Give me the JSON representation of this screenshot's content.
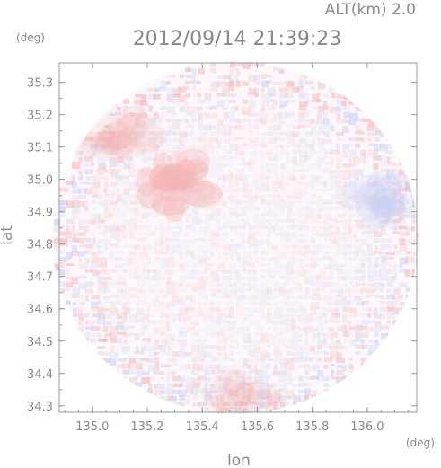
{
  "header": {
    "altitude_label": "ALT(km) 2.0",
    "timestamp": "2012/09/14 21:39:23"
  },
  "colors": {
    "axis": "#9a9a9a",
    "text": "#8a8a8a",
    "positive": "#f4b3b3",
    "negative": "#c8d0f4",
    "background": "#ffffff"
  },
  "chart_data": {
    "type": "heatmap",
    "title": "",
    "xlabel": "lon",
    "ylabel": "lat",
    "x_unit": "(deg)",
    "y_unit": "(deg)",
    "xlim": [
      134.88,
      136.18
    ],
    "ylim": [
      34.28,
      35.36
    ],
    "x_ticks": [
      "135.0",
      "135.2",
      "135.4",
      "135.6",
      "135.8",
      "136.0"
    ],
    "y_ticks": [
      "34.3",
      "34.4",
      "34.5",
      "34.6",
      "34.7",
      "34.8",
      "34.9",
      "35.0",
      "35.1",
      "35.2",
      "35.3"
    ],
    "domain": {
      "shape": "circle",
      "center_lon": 135.52,
      "center_lat": 34.82,
      "radius_lon": 0.665,
      "radius_lat": 0.545
    },
    "features": [
      {
        "name": "warm patch",
        "sign": "positive",
        "lon": 135.3,
        "lat": 34.99,
        "intensity": 0.55
      },
      {
        "name": "north-west rim",
        "sign": "positive",
        "lon": 135.08,
        "lat": 35.12,
        "intensity": 0.25
      },
      {
        "name": "east rim",
        "sign": "negative",
        "lon": 136.06,
        "lat": 34.92,
        "intensity": 0.3
      },
      {
        "name": "south rim",
        "sign": "positive",
        "lon": 135.55,
        "lat": 34.34,
        "intensity": 0.15
      }
    ]
  }
}
